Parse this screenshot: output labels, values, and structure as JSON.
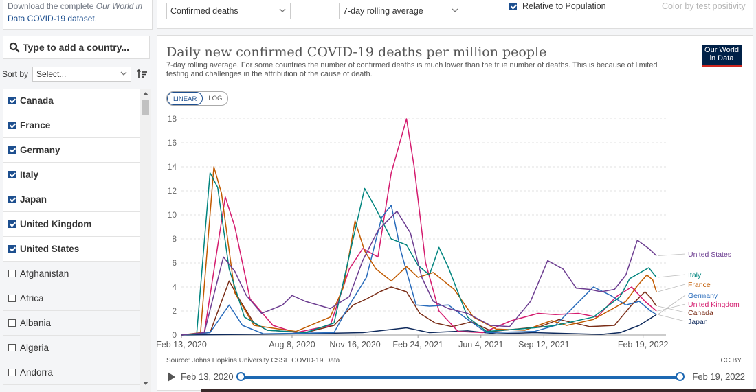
{
  "sidebar": {
    "download_pre": "Download the complete ",
    "download_italic": "Our World in",
    "download_link": "Data COVID-19 dataset",
    "download_post": ".",
    "search_placeholder": "Type to add a country...",
    "sort_label": "Sort by",
    "sort_value": "Select...",
    "countries": [
      {
        "name": "Canada",
        "checked": true
      },
      {
        "name": "France",
        "checked": true
      },
      {
        "name": "Germany",
        "checked": true
      },
      {
        "name": "Italy",
        "checked": true
      },
      {
        "name": "Japan",
        "checked": true
      },
      {
        "name": "United Kingdom",
        "checked": true
      },
      {
        "name": "United States",
        "checked": true
      },
      {
        "name": "Afghanistan",
        "checked": false
      },
      {
        "name": "Africa",
        "checked": false
      },
      {
        "name": "Albania",
        "checked": false
      },
      {
        "name": "Algeria",
        "checked": false
      },
      {
        "name": "Andorra",
        "checked": false
      }
    ]
  },
  "topbar": {
    "metric": "Confirmed deaths",
    "interval": "7-day rolling average",
    "relative_label": "Relative to Population",
    "relative_checked": true,
    "color_label": "Color by test positivity",
    "color_checked": false
  },
  "chart": {
    "title": "Daily new confirmed COVID-19 deaths per million people",
    "subtitle": "7-day rolling average. For some countries the number of confirmed deaths is much lower than the true number of deaths. This is because of limited testing and challenges in the attribution of the cause of death.",
    "logo_line1": "Our World",
    "logo_line2": "in Data",
    "scale_linear": "LINEAR",
    "scale_log": "LOG",
    "source": "Source: Johns Hopkins University CSSE COVID-19 Data",
    "license": "CC BY",
    "timeline_start": "Feb 13, 2020",
    "timeline_end": "Feb 19, 2022"
  },
  "chart_data": {
    "type": "line",
    "title": "Daily new confirmed COVID-19 deaths per million people",
    "ylim": [
      0,
      18
    ],
    "y_ticks": [
      "0",
      "2",
      "4",
      "6",
      "8",
      "10",
      "12",
      "14",
      "16",
      "18"
    ],
    "x_ticks": [
      "Feb 13, 2020",
      "Aug 8, 2020",
      "Nov 16, 2020",
      "Feb 24, 2021",
      "Jun 4, 2021",
      "Sep 12, 2021",
      "Feb 19, 2022"
    ],
    "x_tick_months": [
      0,
      5.8,
      9.1,
      12.4,
      15.7,
      19.0,
      24.2
    ],
    "xlim_months": [
      0,
      25.4
    ],
    "grid": true,
    "series": [
      {
        "name": "United States",
        "color": "#6d3e91",
        "points": [
          [
            0,
            0
          ],
          [
            1.2,
            0.2
          ],
          [
            2.2,
            6.5
          ],
          [
            2.8,
            5.3
          ],
          [
            3.4,
            3.3
          ],
          [
            4.2,
            1.8
          ],
          [
            5.3,
            2.5
          ],
          [
            5.8,
            3.3
          ],
          [
            6.5,
            2.8
          ],
          [
            7.8,
            2.2
          ],
          [
            8.8,
            3.2
          ],
          [
            9.5,
            6.2
          ],
          [
            10.3,
            8.7
          ],
          [
            11.3,
            10.3
          ],
          [
            12.0,
            8.5
          ],
          [
            12.6,
            4.8
          ],
          [
            13.2,
            2.8
          ],
          [
            14.0,
            2.2
          ],
          [
            15.0,
            1.8
          ],
          [
            16.2,
            0.8
          ],
          [
            17.2,
            0.7
          ],
          [
            18.3,
            2.8
          ],
          [
            19.2,
            6.2
          ],
          [
            20.0,
            5.5
          ],
          [
            20.7,
            3.9
          ],
          [
            21.4,
            3.8
          ],
          [
            22.0,
            3.6
          ],
          [
            22.7,
            3.8
          ],
          [
            23.3,
            5.0
          ],
          [
            23.9,
            7.9
          ],
          [
            24.5,
            7.2
          ],
          [
            24.9,
            6.6
          ]
        ]
      },
      {
        "name": "Italy",
        "color": "#00847e",
        "points": [
          [
            0,
            0
          ],
          [
            0.8,
            0.1
          ],
          [
            1.5,
            13.5
          ],
          [
            1.9,
            12.3
          ],
          [
            2.5,
            5.5
          ],
          [
            3.3,
            1.5
          ],
          [
            4.5,
            0.4
          ],
          [
            6.5,
            0.2
          ],
          [
            8.0,
            1.0
          ],
          [
            9.0,
            8.0
          ],
          [
            9.6,
            12.2
          ],
          [
            10.2,
            10.5
          ],
          [
            11.0,
            8.0
          ],
          [
            11.8,
            7.5
          ],
          [
            12.4,
            5.8
          ],
          [
            13.0,
            5.0
          ],
          [
            13.5,
            7.3
          ],
          [
            14.0,
            5.6
          ],
          [
            15.0,
            1.5
          ],
          [
            16.0,
            0.3
          ],
          [
            18.5,
            0.6
          ],
          [
            19.6,
            0.8
          ],
          [
            21.6,
            1.5
          ],
          [
            23.0,
            3.2
          ],
          [
            23.5,
            4.7
          ],
          [
            24.5,
            5.6
          ],
          [
            24.9,
            4.8
          ]
        ]
      },
      {
        "name": "France",
        "color": "#c15a00",
        "points": [
          [
            0,
            0
          ],
          [
            1.0,
            0.2
          ],
          [
            1.7,
            14.0
          ],
          [
            2.1,
            11.8
          ],
          [
            2.8,
            3.5
          ],
          [
            3.8,
            0.8
          ],
          [
            6.0,
            0.3
          ],
          [
            7.8,
            1.5
          ],
          [
            8.5,
            4.0
          ],
          [
            9.1,
            9.5
          ],
          [
            9.6,
            7.0
          ],
          [
            10.2,
            5.5
          ],
          [
            11.0,
            4.5
          ],
          [
            11.8,
            5.7
          ],
          [
            12.4,
            4.8
          ],
          [
            13.2,
            5.2
          ],
          [
            14.3,
            3.8
          ],
          [
            15.3,
            1.5
          ],
          [
            16.5,
            0.5
          ],
          [
            18.0,
            0.4
          ],
          [
            19.4,
            1.2
          ],
          [
            20.2,
            0.8
          ],
          [
            21.6,
            1.3
          ],
          [
            23.3,
            2.8
          ],
          [
            23.9,
            4.1
          ],
          [
            24.4,
            5.0
          ],
          [
            24.7,
            4.6
          ],
          [
            24.9,
            3.6
          ]
        ]
      },
      {
        "name": "Germany",
        "color": "#286bbb",
        "points": [
          [
            0,
            0
          ],
          [
            1.5,
            0.2
          ],
          [
            2.5,
            2.5
          ],
          [
            3.2,
            0.8
          ],
          [
            4.3,
            0.1
          ],
          [
            8.0,
            0.2
          ],
          [
            8.8,
            2.5
          ],
          [
            9.7,
            4.8
          ],
          [
            10.5,
            9.8
          ],
          [
            11.0,
            10.8
          ],
          [
            11.5,
            7.0
          ],
          [
            12.3,
            2.5
          ],
          [
            13.0,
            2.4
          ],
          [
            14.0,
            2.5
          ],
          [
            15.0,
            1.3
          ],
          [
            16.0,
            0.2
          ],
          [
            18.5,
            0.3
          ],
          [
            19.6,
            0.8
          ],
          [
            21.6,
            4.0
          ],
          [
            22.5,
            3.3
          ],
          [
            23.3,
            2.5
          ],
          [
            24.0,
            2.8
          ],
          [
            24.6,
            2.0
          ],
          [
            24.9,
            1.7
          ]
        ]
      },
      {
        "name": "United Kingdom",
        "color": "#d41b6e",
        "points": [
          [
            0,
            0
          ],
          [
            1.2,
            0.2
          ],
          [
            2.3,
            11.5
          ],
          [
            2.8,
            9.0
          ],
          [
            3.6,
            3.0
          ],
          [
            4.8,
            0.8
          ],
          [
            6.0,
            0.2
          ],
          [
            7.8,
            0.8
          ],
          [
            8.8,
            5.5
          ],
          [
            9.5,
            7.2
          ],
          [
            10.3,
            6.5
          ],
          [
            11.0,
            13.5
          ],
          [
            11.8,
            18.0
          ],
          [
            12.2,
            14.0
          ],
          [
            12.8,
            6.0
          ],
          [
            13.5,
            2.0
          ],
          [
            14.5,
            0.3
          ],
          [
            15.8,
            0.2
          ],
          [
            17.3,
            1.2
          ],
          [
            18.7,
            1.8
          ],
          [
            19.6,
            1.7
          ],
          [
            20.8,
            1.8
          ],
          [
            21.8,
            1.5
          ],
          [
            22.8,
            3.2
          ],
          [
            23.6,
            4.0
          ],
          [
            24.3,
            2.8
          ],
          [
            24.9,
            2.0
          ]
        ]
      },
      {
        "name": "Canada",
        "color": "#7a2d17",
        "points": [
          [
            0,
            0
          ],
          [
            1.5,
            0.2
          ],
          [
            2.5,
            4.5
          ],
          [
            3.1,
            2.8
          ],
          [
            3.8,
            1.0
          ],
          [
            4.5,
            0.4
          ],
          [
            6.5,
            0.2
          ],
          [
            8.0,
            0.8
          ],
          [
            9.0,
            2.5
          ],
          [
            9.7,
            3.0
          ],
          [
            10.4,
            3.6
          ],
          [
            11.0,
            4.0
          ],
          [
            11.8,
            3.6
          ],
          [
            12.5,
            1.8
          ],
          [
            13.3,
            1.0
          ],
          [
            14.2,
            0.7
          ],
          [
            15.2,
            1.1
          ],
          [
            16.3,
            0.3
          ],
          [
            18.8,
            0.7
          ],
          [
            19.8,
            1.3
          ],
          [
            21.4,
            0.7
          ],
          [
            22.7,
            0.8
          ],
          [
            23.6,
            2.5
          ],
          [
            24.3,
            3.6
          ],
          [
            24.6,
            3.1
          ],
          [
            24.9,
            2.4
          ]
        ]
      },
      {
        "name": "Japan",
        "color": "#0f2a5c",
        "points": [
          [
            0,
            0
          ],
          [
            3.0,
            0.05
          ],
          [
            6.0,
            0.1
          ],
          [
            9.5,
            0.2
          ],
          [
            11.8,
            0.6
          ],
          [
            13.0,
            0.2
          ],
          [
            15.0,
            0.35
          ],
          [
            16.5,
            0.1
          ],
          [
            18.5,
            0.2
          ],
          [
            22.0,
            0.05
          ],
          [
            23.0,
            0.2
          ],
          [
            24.0,
            0.8
          ],
          [
            24.9,
            1.7
          ]
        ]
      }
    ],
    "end_labels": [
      "United States",
      "Italy",
      "France",
      "Germany",
      "United Kingdom",
      "Canada",
      "Japan"
    ]
  }
}
